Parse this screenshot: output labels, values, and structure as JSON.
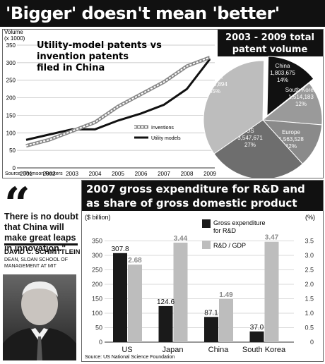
{
  "headline": "'Bigger' doesn't mean 'better'",
  "quote": {
    "mark": "“",
    "text": "There is no doubt that China will make great leaps in innovation.\"",
    "name": "DAVID C. SCHMITTLEIN",
    "title": "DEAN, SLOAN SCHOOL OF MANAGEMENT AT MIT"
  },
  "colors": {
    "dark": "#1a1a1a",
    "mid": "#8a8a8a",
    "light": "#bdbdbd",
    "lighter": "#d6d6d6"
  },
  "chart_data": [
    {
      "type": "line",
      "title": "Utility-model patents vs invention patents filed in China",
      "ylabel": "Volume (x 1000)",
      "ylabel_line1": "Volume",
      "ylabel_line2": "(x 1000)",
      "title_line1": "Utility-model patents vs",
      "title_line2": "invention patents",
      "title_line3": "filed in China",
      "x": [
        "2001",
        "2002",
        "2003",
        "2004",
        "2005",
        "2006",
        "2007",
        "2008",
        "2009"
      ],
      "ylim": [
        0,
        350
      ],
      "yticks": [
        0,
        50,
        100,
        150,
        200,
        250,
        300,
        350
      ],
      "series": [
        {
          "name": "Inventions",
          "values": [
            63,
            80,
            105,
            130,
            175,
            210,
            245,
            290,
            315
          ]
        },
        {
          "name": "Utility models",
          "values": [
            80,
            95,
            110,
            110,
            135,
            155,
            180,
            225,
            310
          ]
        }
      ],
      "source": "Source: Thomson Reuters"
    },
    {
      "type": "pie",
      "title": "2003 - 2009 total patent volume",
      "title_line1": "2003 - 2009 total",
      "title_line2": "patent volume",
      "slices": [
        {
          "name": "China",
          "value_text": "1,803,675",
          "percent_text": "14%",
          "percent": 14
        },
        {
          "name": "South Korea",
          "value_text": "1,514,183",
          "percent_text": "12%",
          "percent": 12
        },
        {
          "name": "Europe",
          "value_text": "1,563,528",
          "percent_text": "12%",
          "percent": 12
        },
        {
          "name": "US",
          "value_text": "3,547,671",
          "percent_text": "27%",
          "percent": 27
        },
        {
          "name": "Japan",
          "value_text": "4,625,894",
          "percent_text": "35%",
          "percent": 35
        }
      ]
    },
    {
      "type": "bar",
      "title": "2007 gross expenditure for R&D and as share of gross domestic product",
      "title_line1": "2007 gross expenditure for R&D and",
      "title_line2": "as share of gross domestic product",
      "ylabel_left": "($ billion)",
      "ylabel_right": "(%)",
      "categories": [
        "US",
        "Japan",
        "China",
        "South Korea"
      ],
      "ylim_left": [
        0,
        400
      ],
      "yticks_left": [
        0,
        50,
        100,
        150,
        200,
        250,
        300,
        350
      ],
      "ylim_right": [
        0,
        4.0
      ],
      "yticks_right": [
        "0",
        "0.5",
        "1.0",
        "1.5",
        "2.0",
        "2.5",
        "3.0",
        "3.5"
      ],
      "series": [
        {
          "name": "Gross expenditure for R&D",
          "name_line1": "Gross expenditure",
          "name_line2": "for R&D",
          "values": [
            307.8,
            124.6,
            87.1,
            37.0
          ],
          "labels": [
            "307.8",
            "124.6",
            "87.1",
            "37.0"
          ]
        },
        {
          "name": "R&D / GDP",
          "values": [
            2.68,
            3.44,
            1.49,
            3.47
          ],
          "labels": [
            "2.68",
            "3.44",
            "1.49",
            "3.47"
          ]
        }
      ],
      "source": "Source: US National Science Foundation"
    }
  ]
}
